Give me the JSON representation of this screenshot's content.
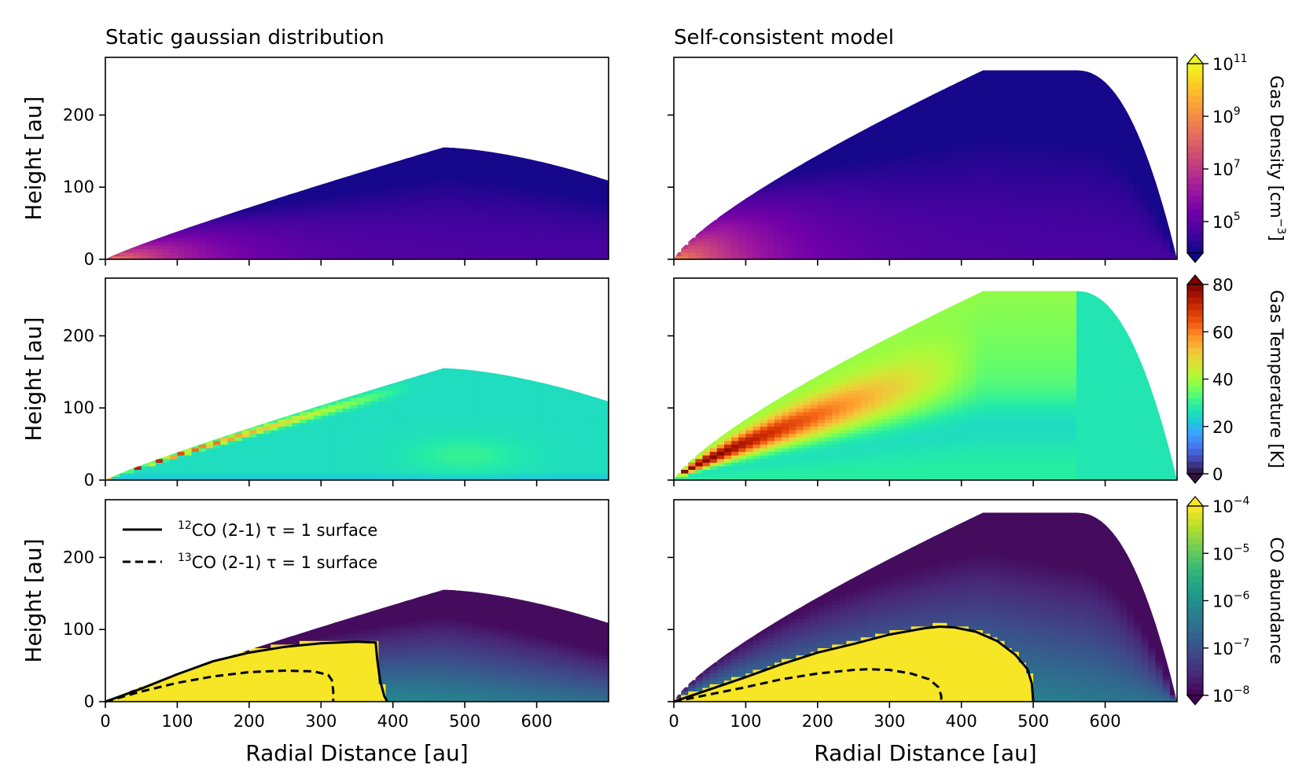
{
  "chart_data": {
    "type": "heatmap",
    "columns": [
      {
        "title": "Static gaussian distribution",
        "disk_outer_radius": 700,
        "disk_max_height": 155
      },
      {
        "title": "Self-consistent model",
        "disk_outer_radius": 700,
        "disk_max_height": 262
      }
    ],
    "rows": [
      {
        "quantity": "Gas Density",
        "colorbar_label": "Gas Density [cm",
        "colorbar_label_sup": "−3",
        "colorbar_label_end": "]",
        "colormap": "plasma",
        "scale": "log",
        "range": [
          10000,
          100000000000
        ],
        "ticks": [
          {
            "base": "10",
            "exp": "11"
          },
          {
            "base": "10",
            "exp": "9"
          },
          {
            "base": "10",
            "exp": "7"
          },
          {
            "base": "10",
            "exp": "5"
          }
        ]
      },
      {
        "quantity": "Gas Temperature",
        "colorbar_label": "Gas Temperature [K]",
        "colormap": "turbo",
        "scale": "linear",
        "range": [
          0,
          80
        ],
        "ticks": [
          "80",
          "60",
          "40",
          "20",
          "0"
        ]
      },
      {
        "quantity": "CO abundance",
        "colorbar_label": "CO abundance",
        "colormap": "viridis",
        "scale": "log",
        "range": [
          1e-08,
          0.0001
        ],
        "ticks": [
          {
            "base": "10",
            "exp": "−4"
          },
          {
            "base": "10",
            "exp": "−5"
          },
          {
            "base": "10",
            "exp": "−6"
          },
          {
            "base": "10",
            "exp": "−7"
          },
          {
            "base": "10",
            "exp": "−8"
          }
        ]
      }
    ],
    "xlabel": "Radial Distance [au]",
    "ylabel": "Height [au]",
    "xlim": [
      0,
      700
    ],
    "ylim": [
      0,
      280
    ],
    "xticks": [
      "0",
      "100",
      "200",
      "300",
      "400",
      "500",
      "600"
    ],
    "yticks": [
      "0",
      "100",
      "200"
    ],
    "legend": {
      "placement": "top-left",
      "entries": [
        {
          "sup": "12",
          "label": "CO (2-1) τ = 1 surface",
          "style": "solid"
        },
        {
          "sup": "13",
          "label": "CO (2-1) τ = 1 surface",
          "style": "dashed"
        }
      ]
    },
    "tau_surfaces": {
      "static": {
        "co12": [
          [
            0,
            0
          ],
          [
            50,
            18
          ],
          [
            100,
            38
          ],
          [
            150,
            56
          ],
          [
            200,
            68
          ],
          [
            250,
            76
          ],
          [
            300,
            81
          ],
          [
            350,
            83
          ],
          [
            376,
            82
          ],
          [
            378,
            60
          ],
          [
            382,
            30
          ],
          [
            388,
            8
          ],
          [
            392,
            0
          ]
        ],
        "co13": [
          [
            0,
            0
          ],
          [
            50,
            14
          ],
          [
            100,
            26
          ],
          [
            150,
            35
          ],
          [
            200,
            41
          ],
          [
            250,
            43
          ],
          [
            290,
            42
          ],
          [
            310,
            37
          ],
          [
            315,
            30
          ],
          [
            317,
            15
          ],
          [
            317,
            0
          ]
        ]
      },
      "self_consistent": {
        "co12": [
          [
            0,
            0
          ],
          [
            50,
            17
          ],
          [
            100,
            34
          ],
          [
            150,
            52
          ],
          [
            200,
            68
          ],
          [
            250,
            80
          ],
          [
            300,
            93
          ],
          [
            350,
            102
          ],
          [
            370,
            104
          ],
          [
            390,
            103
          ],
          [
            420,
            97
          ],
          [
            450,
            84
          ],
          [
            475,
            65
          ],
          [
            492,
            45
          ],
          [
            498,
            25
          ],
          [
            500,
            0
          ]
        ],
        "co13": [
          [
            0,
            0
          ],
          [
            50,
            10
          ],
          [
            100,
            20
          ],
          [
            150,
            31
          ],
          [
            200,
            39
          ],
          [
            250,
            44
          ],
          [
            270,
            45
          ],
          [
            300,
            44
          ],
          [
            330,
            39
          ],
          [
            355,
            31
          ],
          [
            368,
            20
          ],
          [
            372,
            8
          ],
          [
            372,
            0
          ]
        ]
      }
    }
  }
}
